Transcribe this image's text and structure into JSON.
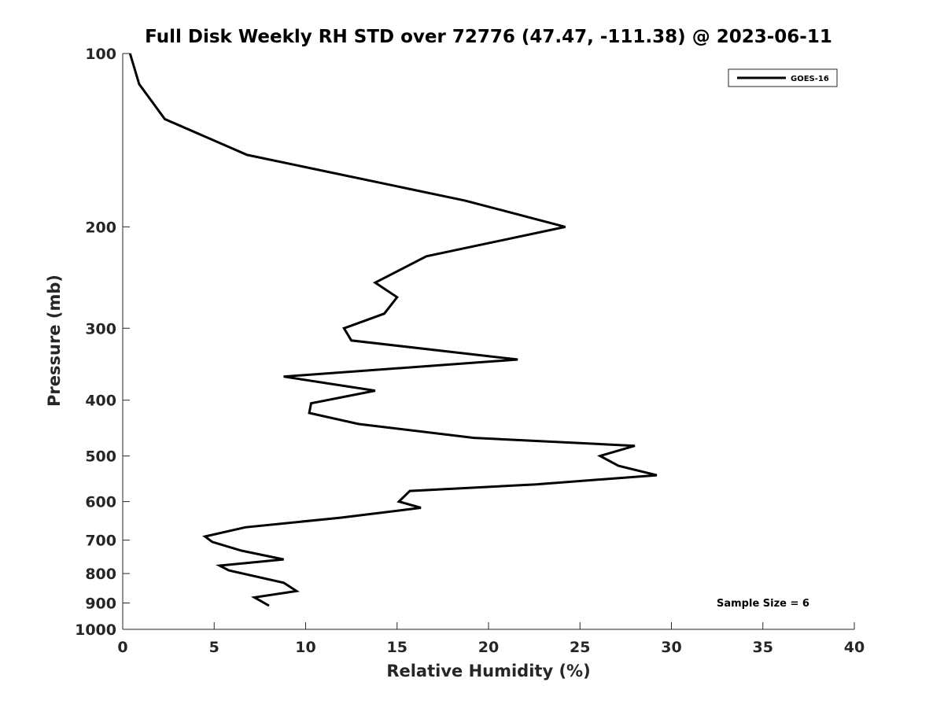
{
  "chart_data": {
    "type": "line",
    "title": "Full Disk Weekly RH STD over 72776 (47.47, -111.38) @ 2023-06-11",
    "xlabel": "Relative Humidity (%)",
    "ylabel": "Pressure (mb)",
    "xlim": [
      0,
      40
    ],
    "ylim": [
      100,
      1000
    ],
    "yscale": "log",
    "y_reversed": true,
    "x_ticks": [
      0,
      5,
      10,
      15,
      20,
      25,
      30,
      35,
      40
    ],
    "x_tick_labels": [
      "0",
      "5",
      "10",
      "15",
      "20",
      "25",
      "30",
      "35",
      "40"
    ],
    "y_ticks": [
      100,
      200,
      300,
      400,
      500,
      600,
      700,
      800,
      900,
      1000
    ],
    "y_tick_labels": [
      "100",
      "200",
      "300",
      "400",
      "500",
      "600",
      "700",
      "800",
      "900",
      "1000"
    ],
    "legend_position": "top-right",
    "series": [
      {
        "name": "GOES-16",
        "color": "#000000",
        "x": [
          0.4,
          0.9,
          2.3,
          6.8,
          18.7,
          24.2,
          16.6,
          13.8,
          15.0,
          14.3,
          12.1,
          12.5,
          21.6,
          8.8,
          13.8,
          10.3,
          10.2,
          12.9,
          19.2,
          28.0,
          26.1,
          27.1,
          29.2,
          22.6,
          15.7,
          15.1,
          16.3,
          11.9,
          6.7,
          4.5,
          4.9,
          6.5,
          8.8,
          5.3,
          5.8,
          8.8,
          9.5,
          7.2,
          8.0
        ],
        "y": [
          100,
          113,
          130,
          150,
          180,
          200,
          225,
          250,
          265,
          283,
          300,
          315,
          340,
          364,
          385,
          405,
          421,
          440,
          465,
          480,
          500,
          520,
          540,
          560,
          575,
          600,
          615,
          640,
          665,
          690,
          705,
          730,
          756,
          775,
          790,
          830,
          858,
          880,
          910
        ]
      }
    ],
    "annotations": [
      "Sample Size = 6"
    ]
  }
}
